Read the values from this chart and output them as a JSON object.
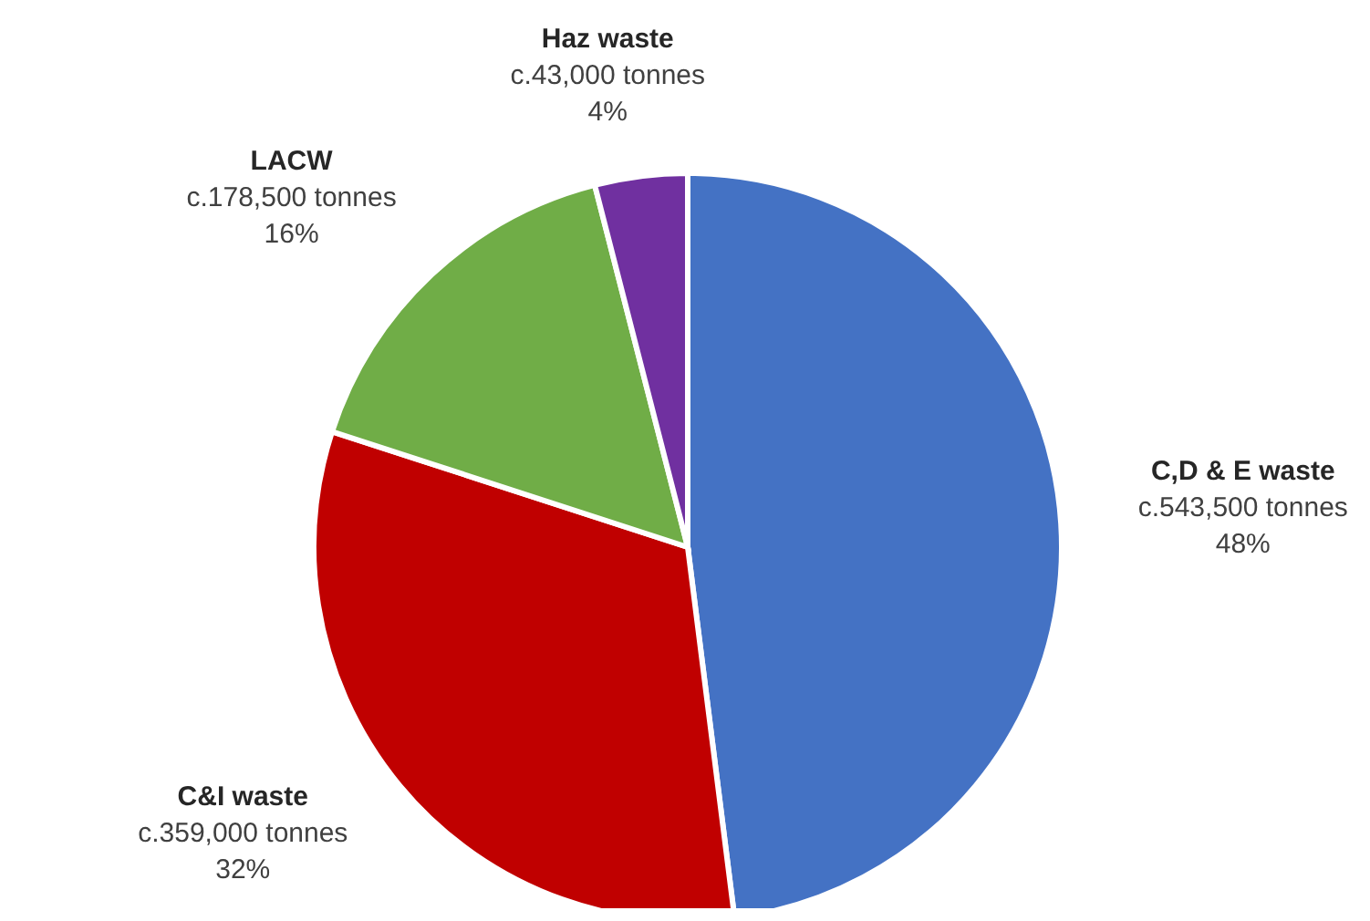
{
  "chart_data": {
    "type": "pie",
    "categories": [
      "C,D & E waste",
      "C&I waste",
      "LACW",
      "Haz waste"
    ],
    "values": [
      48,
      32,
      16,
      4
    ],
    "colors": [
      "#4472c4",
      "#c00000",
      "#70ad47",
      "#7030a0"
    ],
    "value_labels": [
      "c.543,500 tonnes\n48%",
      "c.359,000 tonnes\n32%",
      "c.178,500 tonnes\n16%",
      "c.43,000 tonnes\n4%"
    ],
    "legend": false
  }
}
